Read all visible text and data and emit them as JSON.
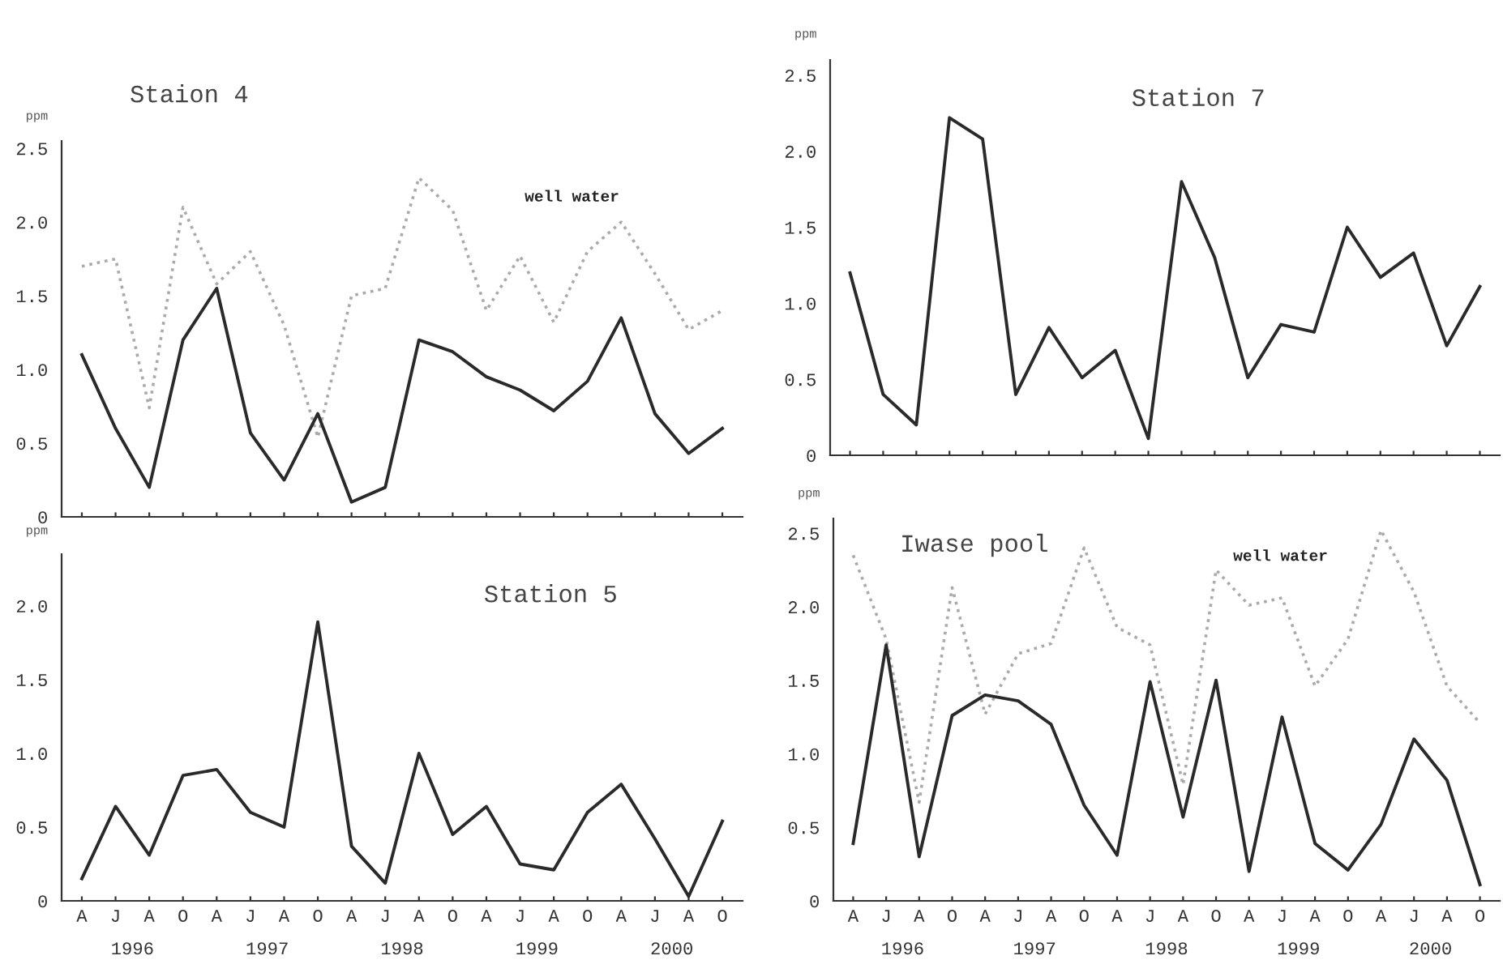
{
  "chart_data": [
    {
      "type": "line",
      "title": "Staion 4",
      "ylabel": "ppm",
      "categories": [
        null,
        null,
        null,
        null,
        null,
        null,
        null,
        null,
        null,
        null,
        null,
        null,
        null,
        null,
        null,
        null,
        null,
        null,
        null,
        null
      ],
      "ylim": [
        0,
        2.55
      ],
      "yticks": [
        {
          "value": 0,
          "label": "0"
        },
        0.5,
        {
          "value": 1,
          "label": "1.0"
        },
        1.5,
        {
          "value": 2,
          "label": "2.0"
        },
        2.5
      ],
      "marker": "none",
      "series": [
        {
          "color": "#aaaaaa",
          "line_style": "dotted",
          "values": [
            1.7,
            1.75,
            0.74,
            2.1,
            1.58,
            1.8,
            1.3,
            0.54,
            1.5,
            1.55,
            2.3,
            2.08,
            1.4,
            1.77,
            1.32,
            1.8,
            2.0,
            1.65,
            1.27,
            1.4
          ]
        },
        {
          "color": "#2a2a2a",
          "line_style": "solid",
          "values": [
            1.1,
            0.6,
            0.2,
            1.2,
            1.55,
            0.57,
            0.25,
            0.7,
            0.1,
            0.2,
            1.2,
            1.12,
            0.95,
            0.86,
            0.72,
            0.92,
            1.35,
            0.7,
            0.43,
            0.6
          ]
        }
      ],
      "annotations": [
        "well water"
      ]
    },
    {
      "type": "line",
      "title": "Station 7",
      "ylabel": "ppm",
      "categories": [
        null,
        null,
        null,
        null,
        null,
        null,
        null,
        null,
        null,
        null,
        null,
        null,
        null,
        null,
        null,
        null,
        null,
        null,
        null,
        null
      ],
      "ylim": [
        0,
        2.6
      ],
      "yticks": [
        {
          "value": 0,
          "label": "0"
        },
        0.5,
        {
          "value": 1,
          "label": "1.0"
        },
        1.5,
        {
          "value": 2,
          "label": "2.0"
        },
        2.5
      ],
      "marker": "none",
      "series": [
        {
          "color": "#2a2a2a",
          "line_style": "solid",
          "values": [
            1.2,
            0.4,
            0.2,
            2.22,
            2.08,
            0.4,
            0.84,
            0.51,
            0.69,
            0.11,
            1.8,
            1.3,
            0.51,
            0.86,
            0.81,
            1.5,
            1.17,
            1.33,
            0.72,
            1.11
          ]
        }
      ]
    },
    {
      "type": "line",
      "title": "Station 5",
      "ylabel": "ppm",
      "categories": [
        "A",
        "J",
        "A",
        "O",
        "A",
        "J",
        "A",
        "O",
        "A",
        "J",
        "A",
        "O",
        "A",
        "J",
        "A",
        "O",
        "A",
        "J",
        "A",
        "O"
      ],
      "ylim": [
        0,
        2.35
      ],
      "yticks": [
        {
          "value": 0,
          "label": "0"
        },
        0.5,
        {
          "value": 1,
          "label": "1.0"
        },
        1.5,
        {
          "value": 2,
          "label": "2.0"
        }
      ],
      "marker": "none",
      "series": [
        {
          "color": "#2a2a2a",
          "line_style": "solid",
          "values": [
            0.15,
            0.64,
            0.31,
            0.85,
            0.89,
            0.6,
            0.5,
            1.89,
            0.37,
            0.12,
            1.0,
            0.45,
            0.64,
            0.25,
            0.21,
            0.6,
            0.79,
            0.42,
            0.03,
            0.54
          ]
        }
      ],
      "annotations": [
        "1996",
        "1997",
        "1998",
        "1999",
        "2000"
      ]
    },
    {
      "type": "line",
      "title": "Iwase pool",
      "ylabel": "ppm",
      "categories": [
        "A",
        "J",
        "A",
        "O",
        "A",
        "J",
        "A",
        "O",
        "A",
        "J",
        "A",
        "O",
        "A",
        "J",
        "A",
        "O",
        "A",
        "J",
        "A",
        "O"
      ],
      "ylim": [
        0,
        2.6
      ],
      "yticks": [
        {
          "value": 0,
          "label": "0"
        },
        0.5,
        {
          "value": 1,
          "label": "1.0"
        },
        1.5,
        {
          "value": 2,
          "label": "2.0"
        },
        2.5
      ],
      "marker": "none",
      "series": [
        {
          "color": "#aaaaaa",
          "line_style": "dotted",
          "values": [
            2.35,
            1.78,
            0.67,
            2.13,
            1.27,
            1.68,
            1.75,
            2.4,
            1.86,
            1.74,
            0.79,
            2.25,
            2.01,
            2.06,
            1.46,
            1.78,
            2.52,
            2.1,
            1.46,
            1.21
          ]
        },
        {
          "color": "#2a2a2a",
          "line_style": "solid",
          "values": [
            0.39,
            1.74,
            0.3,
            1.26,
            1.4,
            1.36,
            1.2,
            0.65,
            0.31,
            1.49,
            0.57,
            1.5,
            0.2,
            1.25,
            0.39,
            0.21,
            0.52,
            1.1,
            0.82,
            0.11
          ]
        }
      ],
      "annotations": [
        "well water",
        "1996",
        "1997",
        "1998",
        "1999",
        "2000"
      ]
    }
  ]
}
